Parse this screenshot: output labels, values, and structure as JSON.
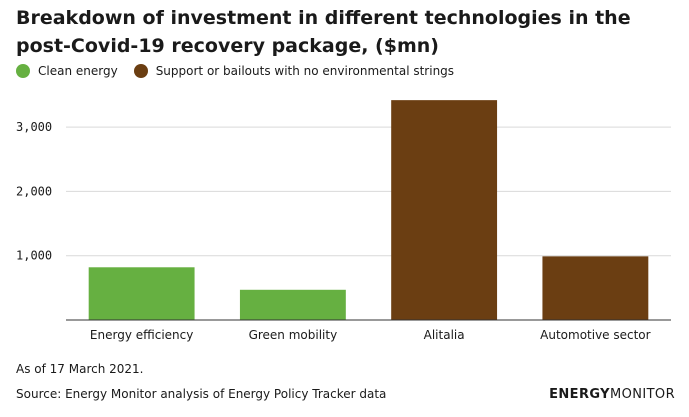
{
  "title": "Breakdown of investment in different technologies in the post-Covid-19 recovery package, ($mn)",
  "legend": [
    {
      "label": "Clean energy",
      "color": "#66b041"
    },
    {
      "label": "Support or bailouts with no environmental strings",
      "color": "#6b3e12"
    }
  ],
  "chart_data": {
    "type": "bar",
    "title": "Breakdown of investment in different technologies in the post-Covid-19 recovery package, ($mn)",
    "categories": [
      "Energy efficiency",
      "Green mobility",
      "Alitalia",
      "Automotive sector"
    ],
    "values": [
      820,
      470,
      3420,
      990
    ],
    "bar_colors": [
      "#66b041",
      "#66b041",
      "#6b3e12",
      "#6b3e12"
    ],
    "ylim": [
      0,
      3500
    ],
    "yticks": [
      1000,
      2000,
      3000
    ],
    "ytick_labels": [
      "1,000",
      "2,000",
      "3,000"
    ],
    "grid": true,
    "legend_position": "top-left"
  },
  "footer": {
    "note": "As of 17 March 2021.",
    "source": "Source: Energy Monitor analysis of Energy Policy Tracker data",
    "brand_bold": "ENERGY",
    "brand_light": "MONITOR"
  }
}
